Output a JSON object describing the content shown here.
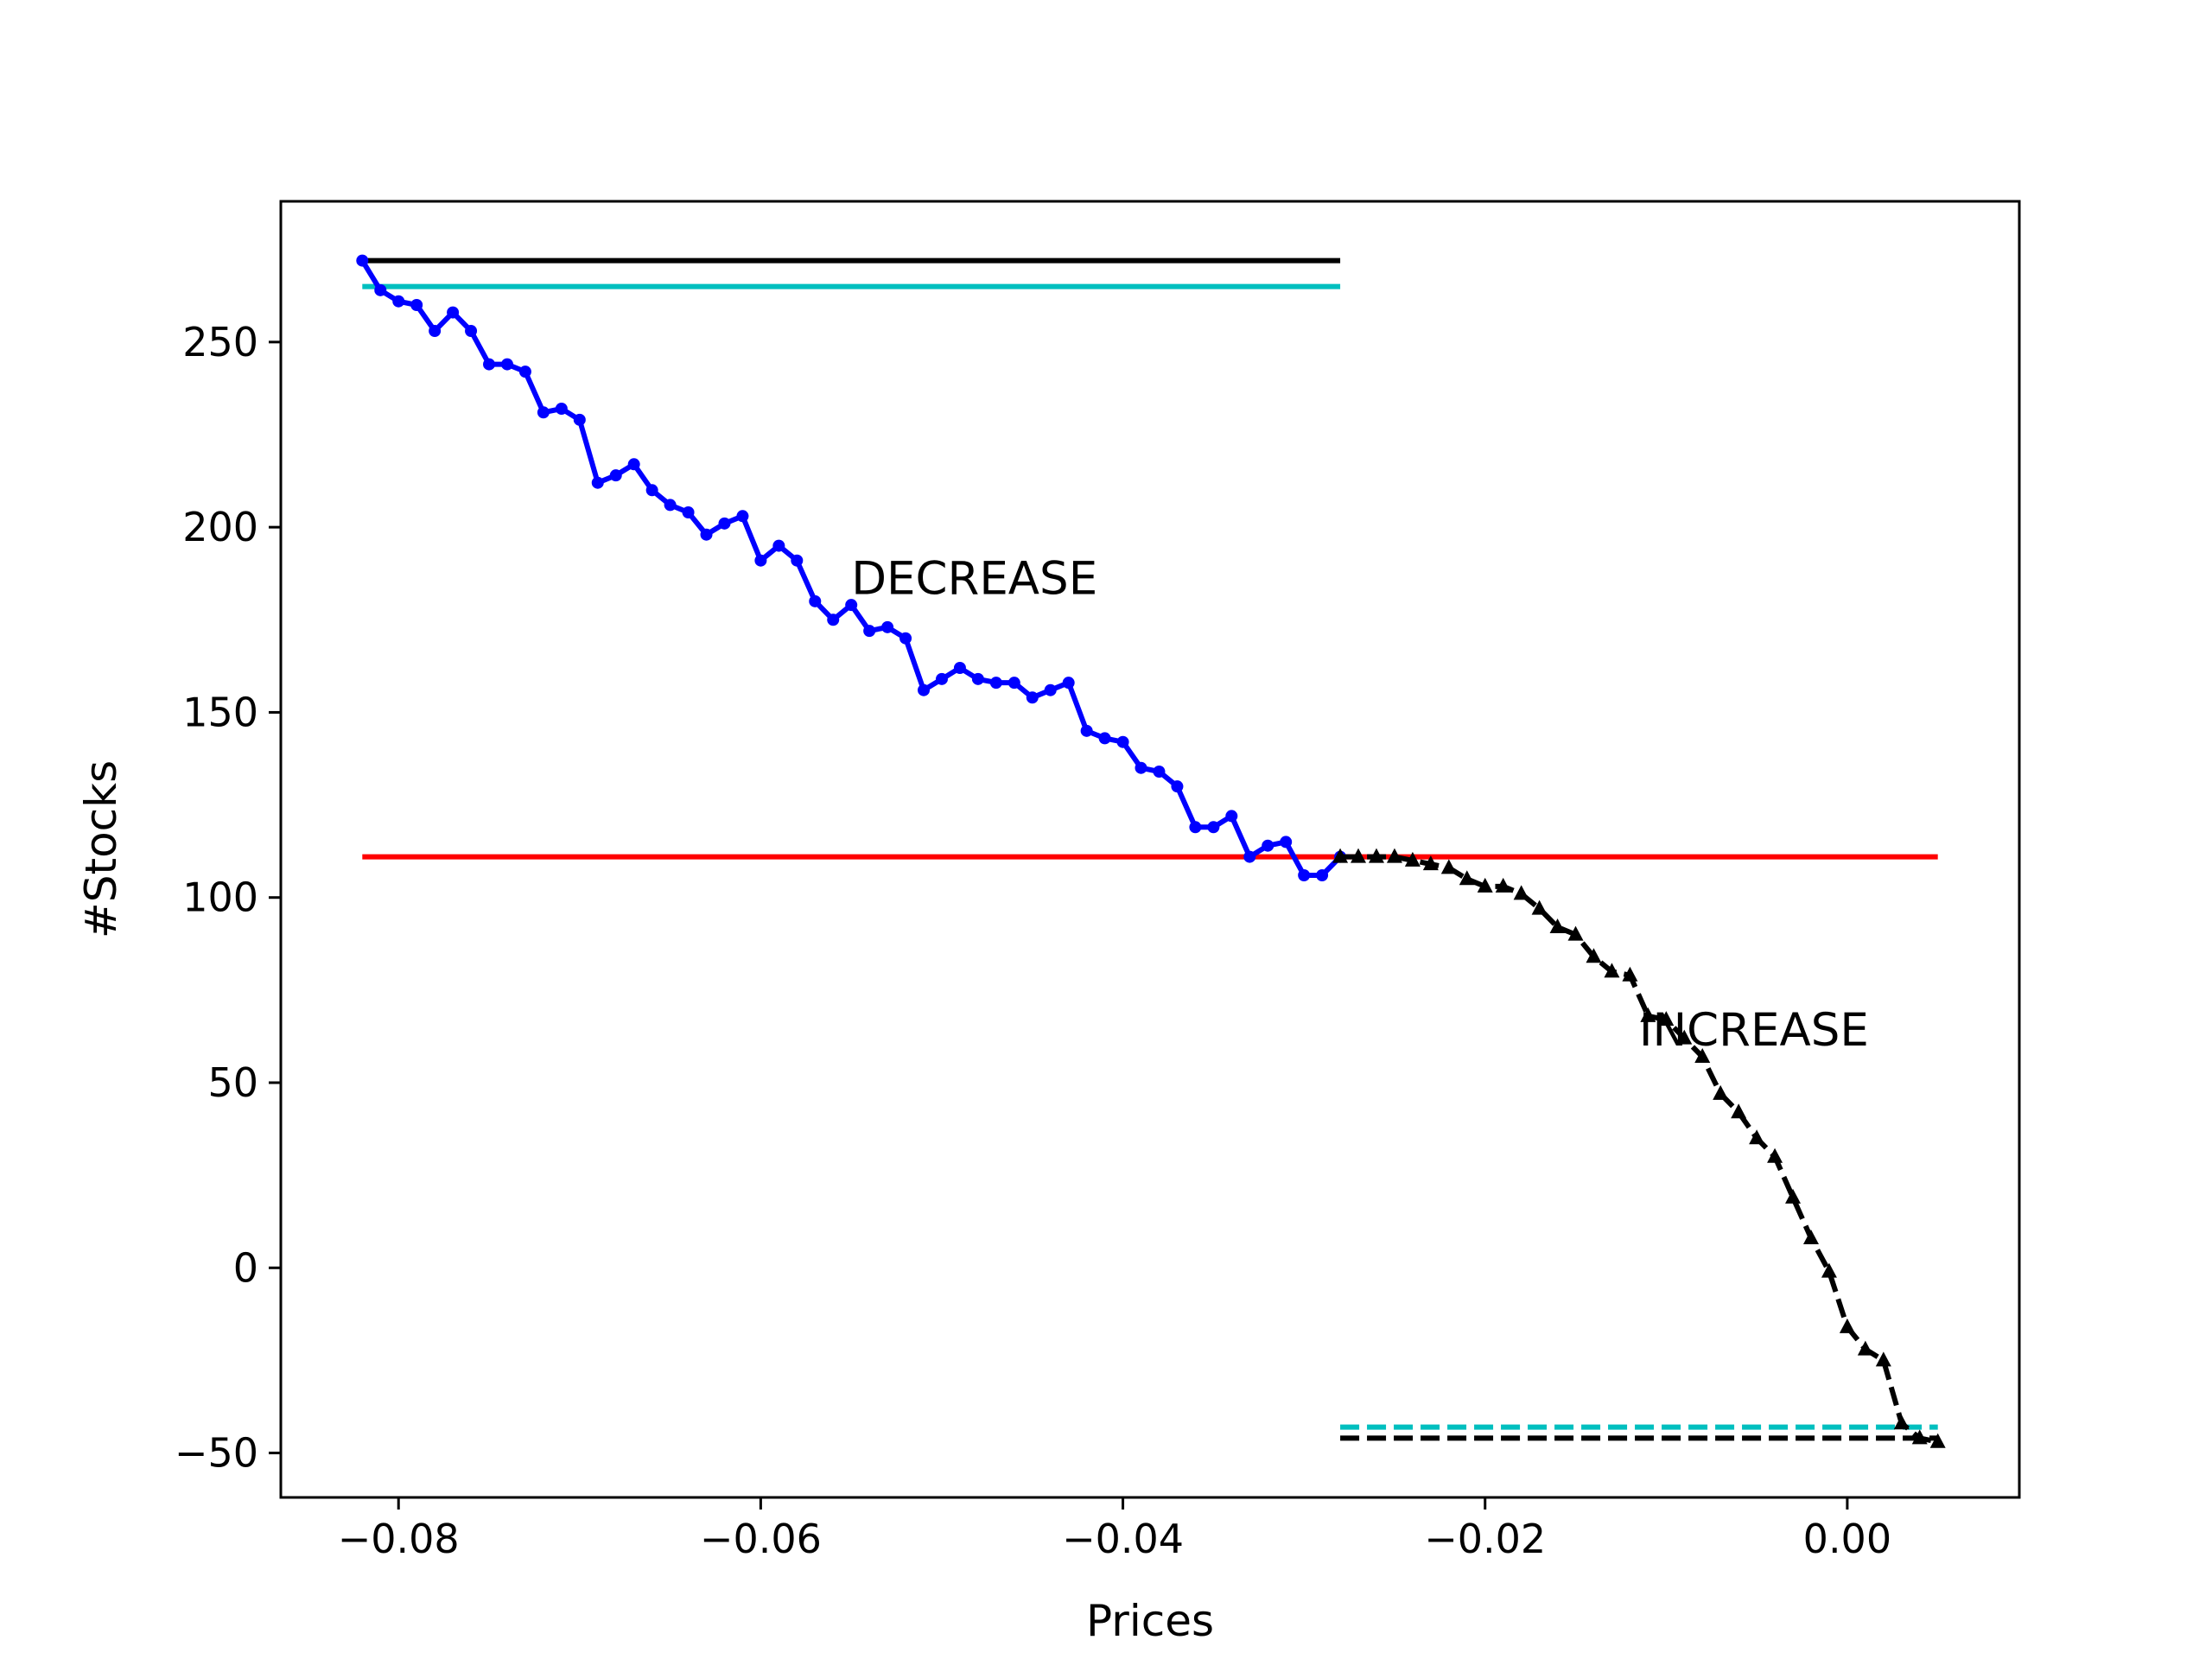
{
  "chart_data": {
    "type": "line",
    "title": "",
    "xlabel": "Prices",
    "ylabel": "#Stocks",
    "xlim": [
      -0.0865,
      0.0095
    ],
    "ylim": [
      -62,
      288
    ],
    "grid": false,
    "x_ticks": [
      -0.08,
      -0.06,
      -0.04,
      -0.02,
      0.0
    ],
    "x_tick_labels": [
      "−0.08",
      "−0.06",
      "−0.04",
      "−0.02",
      "0.00"
    ],
    "y_ticks": [
      -50,
      0,
      50,
      100,
      150,
      200,
      250
    ],
    "y_tick_labels": [
      "−50",
      "0",
      "50",
      "100",
      "150",
      "200",
      "250"
    ],
    "series": [
      {
        "style": "solid-dot",
        "color": "#0000ff",
        "x": [
          -0.082,
          -0.081,
          -0.08,
          -0.079,
          -0.078,
          -0.077,
          -0.076,
          -0.075,
          -0.074,
          -0.073,
          -0.072,
          -0.071,
          -0.07,
          -0.069,
          -0.068,
          -0.067,
          -0.066,
          -0.065,
          -0.064,
          -0.063,
          -0.062,
          -0.061,
          -0.06,
          -0.059,
          -0.058,
          -0.057,
          -0.056,
          -0.055,
          -0.054,
          -0.053,
          -0.052,
          -0.051,
          -0.05,
          -0.049,
          -0.048,
          -0.047,
          -0.046,
          -0.045,
          -0.044,
          -0.043,
          -0.042,
          -0.041,
          -0.04,
          -0.039,
          -0.038,
          -0.037,
          -0.036,
          -0.035,
          -0.034,
          -0.033,
          -0.032,
          -0.031,
          -0.03,
          -0.029,
          -0.028
        ],
        "y": [
          272,
          264,
          261,
          260,
          253,
          258,
          253,
          244,
          244,
          242,
          231,
          232,
          229,
          212,
          214,
          217,
          210,
          206,
          204,
          198,
          201,
          203,
          191,
          195,
          191,
          180,
          175,
          179,
          172,
          173,
          170,
          156,
          159,
          162,
          159,
          158,
          158,
          154,
          156,
          158,
          145,
          143,
          142,
          135,
          134,
          130,
          119,
          119,
          122,
          111,
          114,
          115,
          106,
          106,
          111
        ]
      },
      {
        "style": "dashed-triangle",
        "color": "#000000",
        "x": [
          -0.028,
          -0.027,
          -0.026,
          -0.025,
          -0.024,
          -0.023,
          -0.022,
          -0.021,
          -0.02,
          -0.019,
          -0.018,
          -0.017,
          -0.016,
          -0.015,
          -0.014,
          -0.013,
          -0.012,
          -0.011,
          -0.01,
          -0.009,
          -0.008,
          -0.007,
          -0.006,
          -0.005,
          -0.004,
          -0.003,
          -0.002,
          -0.001,
          0.0,
          0.001,
          0.002,
          0.003,
          0.004,
          0.005
        ],
        "y": [
          111,
          111,
          111,
          111,
          110,
          109,
          108,
          105,
          103,
          103,
          101,
          97,
          92,
          90,
          84,
          80,
          79,
          68,
          67,
          62,
          57,
          47,
          42,
          35,
          30,
          19,
          8,
          -1,
          -16,
          -22,
          -25,
          -42,
          -46,
          -47
        ]
      }
    ],
    "hlines": [
      {
        "y": 272,
        "x_from": -0.082,
        "x_to": -0.028,
        "color": "#000000",
        "style": "solid"
      },
      {
        "y": 265,
        "x_from": -0.082,
        "x_to": -0.028,
        "color": "#00bfbf",
        "style": "solid"
      },
      {
        "y": 111,
        "x_from": -0.082,
        "x_to": 0.005,
        "color": "#ff0000",
        "style": "solid"
      },
      {
        "y": -43,
        "x_from": -0.028,
        "x_to": 0.005,
        "color": "#00bfbf",
        "style": "dashed"
      },
      {
        "y": -46,
        "x_from": -0.028,
        "x_to": 0.005,
        "color": "#000000",
        "style": "dashed"
      }
    ],
    "annotations": [
      {
        "text": "DECREASE",
        "x": -0.055,
        "y": 182
      },
      {
        "text": "INCREASE",
        "x": -0.0115,
        "y": 60
      }
    ]
  }
}
